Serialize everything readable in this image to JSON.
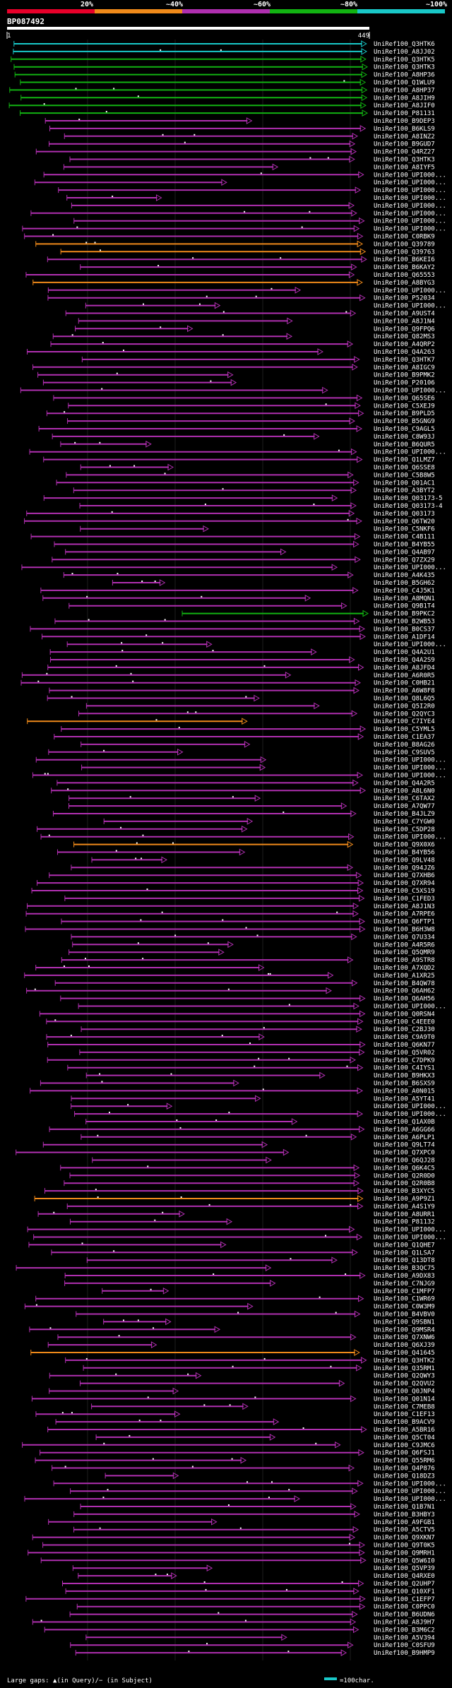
{
  "query_id": "BP087492",
  "query_start": "1",
  "query_length": "449",
  "identity_scale": {
    "labels": [
      "20%",
      "~40%",
      "~60%",
      "~80%",
      "~100%"
    ],
    "colors": [
      "#e8002a",
      "#f08a1a",
      "#b02fb0",
      "#12b312",
      "#19c8c8"
    ]
  },
  "legend": {
    "large_gaps_text": "Large gaps: ▲(in Query)/− (in Subject)",
    "hundred_char_text": "=100char.",
    "hundred_char_color": "#19c8c8"
  },
  "hits": [
    "UniRef100_Q3HTK6",
    "UniRef100_A8JJ02",
    "UniRef100_Q3HTK5",
    "UniRef100_Q3HTK3",
    "UniRef100_A8HP36",
    "UniRef100_Q1WLU9",
    "UniRef100_A8HP37",
    "UniRef100_A8JIH9",
    "UniRef100_A8JIF0",
    "UniRef100_P81131",
    "UniRef100_B9DEP3",
    "UniRef100_B6KLS9",
    "UniRef100_A8INZ2",
    "UniRef100_B9GUD7",
    "UniRef100_Q4RZ27",
    "UniRef100_Q3HTK3",
    "UniRef100_A8IYF5",
    "UniRef100_UPI000...",
    "UniRef100_UPI000...",
    "UniRef100_UPI000...",
    "UniRef100_UPI000...",
    "UniRef100_UPI000...",
    "UniRef100_UPI000...",
    "UniRef100_UPI000...",
    "UniRef100_UPI000...",
    "UniRef100_C0RBK9",
    "UniRef100_Q39789",
    "UniRef100_Q39763",
    "UniRef100_B6KEI6",
    "UniRef100_B6KAY2",
    "UniRef100_Q65553",
    "UniRef100_A8BYG3",
    "UniRef100_UPI000...",
    "UniRef100_P52034",
    "UniRef100_UPI000...",
    "UniRef100_A9UST4",
    "UniRef100_A8J1N4",
    "UniRef100_Q9FPQ6",
    "UniRef100_Q82MS3",
    "UniRef100_A4QRP2",
    "UniRef100_Q4A263",
    "UniRef100_Q3HTK7",
    "UniRef100_A8IGC9",
    "UniRef100_B9PMK2",
    "UniRef100_P20106",
    "UniRef100_UPI000...",
    "UniRef100_Q65SE6",
    "UniRef100_C5XEJ9",
    "UniRef100_B9PLD5",
    "UniRef100_B5GNG9",
    "UniRef100_C9AGL5",
    "UniRef100_C8W93J",
    "UniRef100_B6QUR5",
    "UniRef100_UPI000...",
    "UniRef100_Q1LMZ7",
    "UniRef100_Q6SSE8",
    "UniRef100_C5B8W5",
    "UniRef100_Q01AC1",
    "UniRef100_A3BYT2",
    "UniRef100_Q03173-5",
    "UniRef100_Q03173-4",
    "UniRef100_Q03173",
    "UniRef100_Q6TW20",
    "UniRef100_C5NKF6",
    "UniRef100_C4B111",
    "UniRef100_B4YB55",
    "UniRef100_Q4AB97",
    "UniRef100_Q7ZX29",
    "UniRef100_UPI000...",
    "UniRef100_A4K435",
    "UniRef100_B5GH62",
    "UniRef100_C4J5K1",
    "UniRef100_A8MQN1",
    "UniRef100_Q9B1T4",
    "UniRef100_B9PKC2",
    "UniRef100_B2WB53",
    "UniRef100_B0CS37",
    "UniRef100_A1DF14",
    "UniRef100_UPI000...",
    "UniRef100_Q4A2U1",
    "UniRef100_Q4A2S9",
    "UniRef100_A8JFD4",
    "UniRef100_A6R0R5",
    "UniRef100_C0HB21",
    "UniRef100_A6W8F8",
    "UniRef100_Q8L6Q5",
    "UniRef100_Q5I2R0",
    "UniRef100_Q2QYC3",
    "UniRef100_C7IYE4",
    "UniRef100_C5YML5",
    "UniRef100_C1EA37",
    "UniRef100_B8AG26",
    "UniRef100_C9SUV5",
    "UniRef100_UPI000...",
    "UniRef100_UPI000...",
    "UniRef100_UPI000...",
    "UniRef100_Q4A2R5",
    "UniRef100_A8L6N0",
    "UniRef100_C6TAX2",
    "UniRef100_A7QW77",
    "UniRef100_B4JLZ9",
    "UniRef100_C7YGW0",
    "UniRef100_C5DP28",
    "UniRef100_UPI000...",
    "UniRef100_Q9X0X6",
    "UniRef100_B4YB56",
    "UniRef100_Q9LV48",
    "UniRef100_Q94JZ6",
    "UniRef100_Q7XHB6",
    "UniRef100_Q7XR94",
    "UniRef100_C5XS19",
    "UniRef100_C1FED3",
    "UniRef100_A8J1N3",
    "UniRef100_A7RPE6",
    "UniRef100_Q6FTP1",
    "UniRef100_B6H3W8",
    "UniRef100_Q7U334",
    "UniRef100_A4R5R6",
    "UniRef100_Q5QMR9",
    "UniRef100_A9STR8",
    "UniRef100_A7XQD2",
    "UniRef100_A1XR25",
    "UniRef100_B4QW78",
    "UniRef100_Q6AH62",
    "UniRef100_Q6AH56",
    "UniRef100_UPI000...",
    "UniRef100_Q0RSN4",
    "UniRef100_C4EEE0",
    "UniRef100_C2BJ30",
    "UniRef100_C9A9T0",
    "UniRef100_Q6KN77",
    "UniRef100_Q5VR02",
    "UniRef100_C7DPK9",
    "UniRef100_C4IYS1",
    "UniRef100_B9HKX3",
    "UniRef100_B6SXS9",
    "UniRef100_A0N015",
    "UniRef100_A5YT41",
    "UniRef100_UPI000...",
    "UniRef100_UPI000...",
    "UniRef100_Q1AX0B",
    "UniRef100_A6GG66",
    "UniRef100_A6PLP1",
    "UniRef100_Q9LT74",
    "UniRef100_Q7XPC0",
    "UniRef100_Q6QJ28",
    "UniRef100_Q6K4C5",
    "UniRef100_Q2R0D0",
    "UniRef100_Q2R0B8",
    "UniRef100_B3XYC5",
    "UniRef100_A9P9Z1",
    "UniRef100_A4S1Y9",
    "UniRef100_A8URR1",
    "UniRef100_P81132",
    "UniRef100_UPI000...",
    "UniRef100_UPI000...",
    "UniRef100_Q1QHE7",
    "UniRef100_Q1LSA7",
    "UniRef100_Q13DT8",
    "UniRef100_B3QC75",
    "UniRef100_A9DX83",
    "UniRef100_C7NJG9",
    "UniRef100_C1MFP7",
    "UniRef100_C1WR69",
    "UniRef100_C0W3M9",
    "UniRef100_B4VBV0",
    "UniRef100_Q9SBN1",
    "UniRef100_Q9MSR4",
    "UniRef100_Q7XNW6",
    "UniRef100_Q6XJ39",
    "UniRef100_Q41645",
    "UniRef100_Q3HTK2",
    "UniRef100_Q35RM1",
    "UniRef100_Q2QWY3",
    "UniRef100_Q2QVU2",
    "UniRef100_Q0JNP4",
    "UniRef100_Q01N14",
    "UniRef100_C7MEB8",
    "UniRef100_C1EF13",
    "UniRef100_B9ACV9",
    "UniRef100_A5BR16",
    "UniRef100_Q5CT04",
    "UniRef100_C9JMC6",
    "UniRef100_Q6FSJ1",
    "UniRef100_Q55RM6",
    "UniRef100_Q4P876",
    "UniRef100_Q18DZ3",
    "UniRef100_UPI000...",
    "UniRef100_UPI000...",
    "UniRef100_UPI000...",
    "UniRef100_Q1B7N1",
    "UniRef100_B3HBY3",
    "UniRef100_A9FGB1",
    "UniRef100_A5CTV5",
    "UniRef100_Q9XKN7",
    "UniRef100_Q9T0K5",
    "UniRef100_Q9MRH1",
    "UniRef100_Q5W6I0",
    "UniRef100_Q5VP39",
    "UniRef100_Q4RXE0",
    "UniRef100_Q2UHP7",
    "UniRef100_Q10XF1",
    "UniRef100_C1EFP7",
    "UniRef100_C0PPC0",
    "UniRef100_B6UDN6",
    "UniRef100_A8J9H7",
    "UniRef100_B3M6C2",
    "UniRef100_A5V394",
    "UniRef100_C0SFU9",
    "UniRef100_B9HMP9"
  ]
}
